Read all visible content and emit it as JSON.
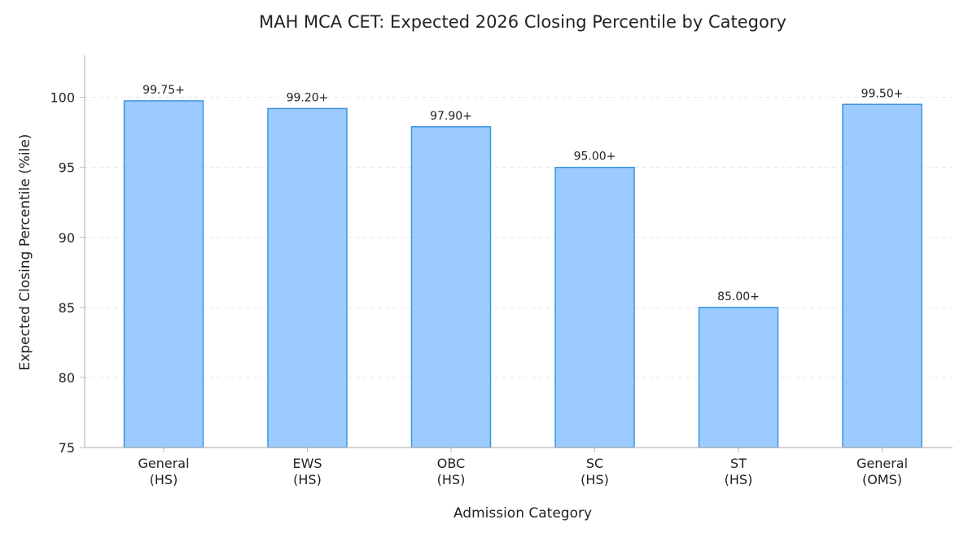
{
  "chart_data": {
    "type": "bar",
    "title": "MAH MCA CET: Expected 2026 Closing Percentile by Category",
    "xlabel": "Admission Category",
    "ylabel": "Expected Closing Percentile (%ile)",
    "ylim": [
      75,
      103
    ],
    "yticks": [
      75,
      80,
      85,
      90,
      95,
      100
    ],
    "grid": true,
    "categories": [
      [
        "General",
        "(HS)"
      ],
      [
        "EWS",
        "(HS)"
      ],
      [
        "OBC",
        "(HS)"
      ],
      [
        "SC",
        "(HS)"
      ],
      [
        "ST",
        "(HS)"
      ],
      [
        "General",
        "(OMS)"
      ]
    ],
    "values": [
      99.75,
      99.2,
      97.9,
      95.0,
      85.0,
      99.5
    ],
    "data_labels": [
      "99.75+",
      "99.20+",
      "97.90+",
      "95.00+",
      "85.00+",
      "99.50+"
    ],
    "colors": {
      "bar_fill": "#9ccbff",
      "bar_edge": "#3a95e0",
      "grid": "#e6e6e6",
      "axis": "#bbbbbb"
    }
  }
}
